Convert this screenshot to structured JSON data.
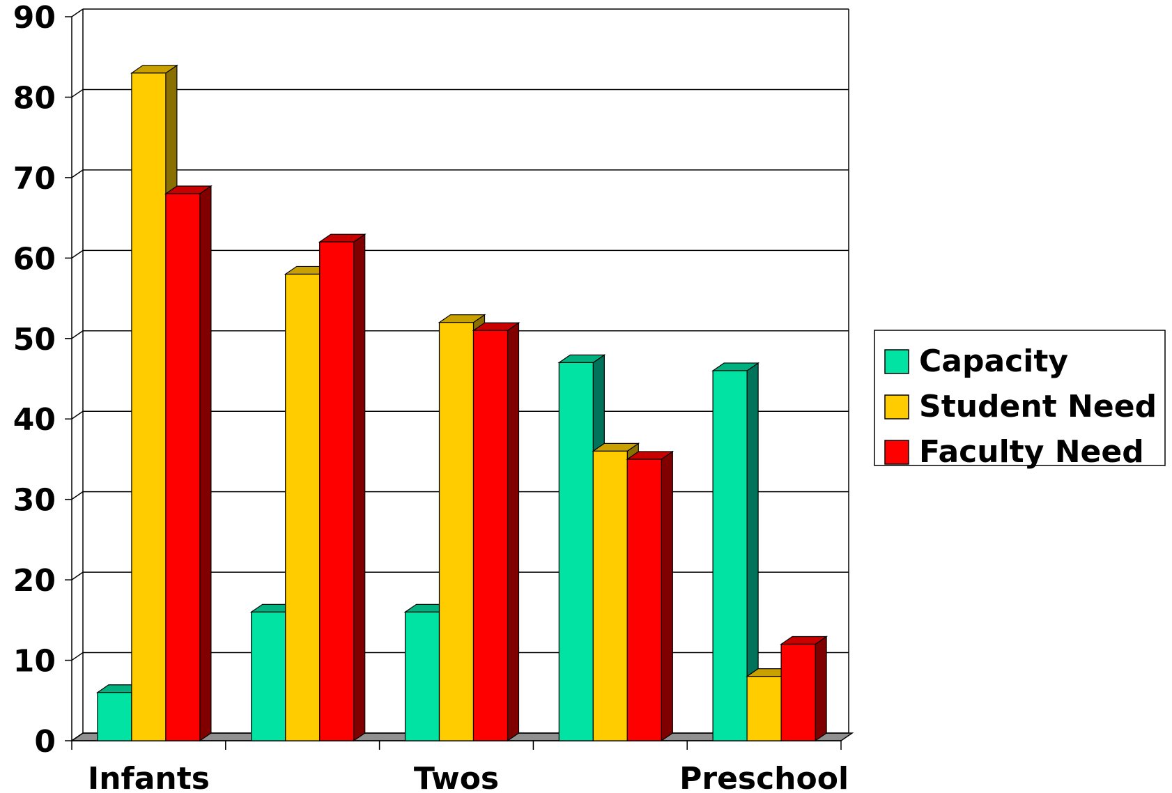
{
  "chart_data": {
    "type": "bar",
    "categories": [
      "Infants",
      "",
      "Twos",
      "",
      "Preschool"
    ],
    "series": [
      {
        "name": "Capacity",
        "values": [
          6,
          16,
          16,
          47,
          46
        ]
      },
      {
        "name": "Student Need",
        "values": [
          83,
          58,
          52,
          36,
          8
        ]
      },
      {
        "name": "Faculty Need",
        "values": [
          68,
          62,
          51,
          35,
          12
        ]
      }
    ],
    "ylim": [
      0,
      90
    ],
    "yticks": [
      0,
      10,
      20,
      30,
      40,
      50,
      60,
      70,
      80,
      90
    ],
    "grid": true,
    "legend_position": "right",
    "colors": {
      "Capacity": {
        "front": "#00e3a2",
        "side": "#00735a",
        "top": "#00b07e"
      },
      "Student Need": {
        "front": "#ffcc00",
        "side": "#8a7000",
        "top": "#c8a000"
      },
      "Faculty Need": {
        "front": "#ff0000",
        "side": "#800000",
        "top": "#c80000"
      }
    }
  }
}
